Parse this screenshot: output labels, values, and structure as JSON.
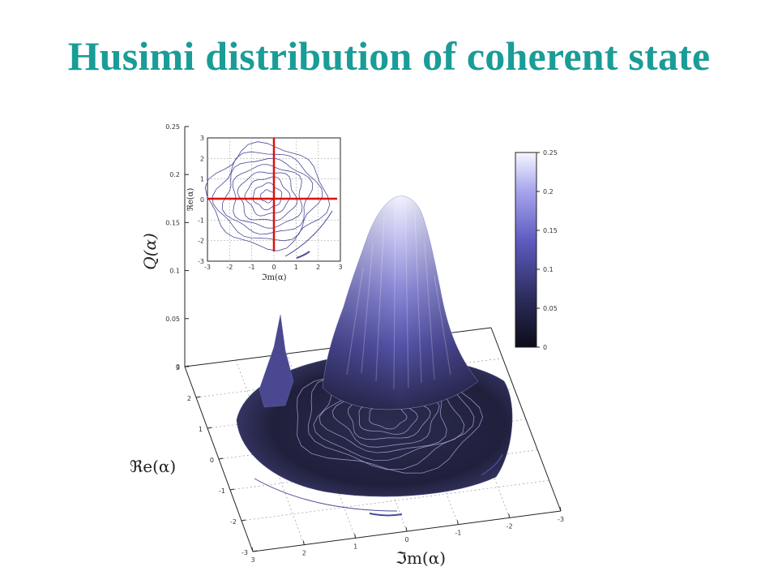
{
  "title": "Husimi distribution of coherent state",
  "colors": {
    "title": "#1a9c97",
    "surface_low": "#14142a",
    "surface_mid": "#5a58b0",
    "surface_high": "#f4f4ff",
    "crosshair": "#dd1111",
    "contour": "#4a4a99"
  },
  "chart_data": [
    {
      "type": "surface",
      "zlabel": "Q(α)",
      "xlabel": "ℑm(α)",
      "ylabel": "ℜe(α)",
      "zlim": [
        0,
        0.25
      ],
      "xlim": [
        -3,
        3
      ],
      "ylim": [
        -3,
        3
      ],
      "z_ticks": [
        "0.25",
        "0.2",
        "0.15",
        "0.1",
        "0.05",
        "0"
      ],
      "x_ticks": [
        "3",
        "2",
        "1",
        "0",
        "-1",
        "-2",
        "-3"
      ],
      "y_ticks": [
        "3",
        "2",
        "1",
        "0",
        "-1",
        "-2",
        "-3"
      ],
      "peak": {
        "x": 0,
        "y": 0,
        "z": 0.25
      },
      "grid": true,
      "colorbar": {
        "ticks": [
          "0.25",
          "0.2",
          "0.15",
          "0.1",
          "0.05",
          "0"
        ],
        "range": [
          0,
          0.25
        ],
        "placement": "right"
      }
    },
    {
      "type": "contour",
      "placement": "inset top-left",
      "xlabel": "ℑm(α)",
      "ylabel": "ℜe(α)",
      "xlim": [
        -3,
        3
      ],
      "ylim": [
        -3,
        3
      ],
      "x_ticks": [
        "-3",
        "-2",
        "-1",
        "0",
        "1",
        "2",
        "3"
      ],
      "y_ticks": [
        "3",
        "2",
        "1",
        "0",
        "-1",
        "-2",
        "-3"
      ],
      "crosshair": {
        "x": 0,
        "y": 0
      },
      "center": {
        "x": 0,
        "y": 0
      },
      "contour_levels": [
        0.03,
        0.06,
        0.09,
        0.12,
        0.15,
        0.18,
        0.21,
        0.24
      ]
    }
  ]
}
